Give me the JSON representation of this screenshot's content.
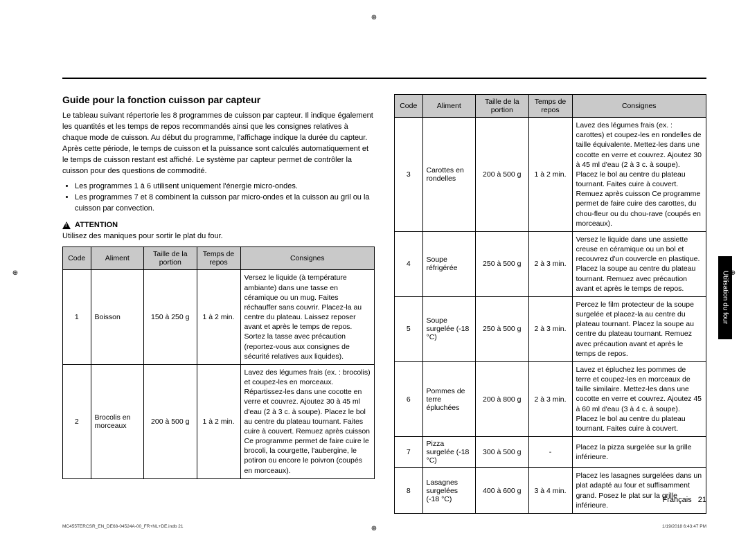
{
  "section_title": "Guide pour la fonction cuisson par capteur",
  "intro": "Le tableau suivant répertorie les 8 programmes de cuisson par capteur. Il indique également les quantités et les temps de repos recommandés ainsi que les consignes relatives à chaque mode de cuisson. Au début du programme, l'affichage indique la durée du capteur. Après cette période, le temps de cuisson et la puissance sont calculés automatiquement et le temps de cuisson restant est affiché. Le système par capteur permet de contrôler la cuisson pour des questions de commodité.",
  "bullets": [
    "Les programmes 1 à 6 utilisent uniquement l'énergie micro-ondes.",
    "Les programmes 7 et 8 combinent la cuisson par micro-ondes et la cuisson au gril ou la cuisson par convection."
  ],
  "attention_label": "ATTENTION",
  "attention_text": "Utilisez des maniques pour sortir le plat du four.",
  "headers": {
    "code": "Code",
    "aliment": "Aliment",
    "taille": "Taille de la portion",
    "temps": "Temps de repos",
    "consignes": "Consignes"
  },
  "left_rows": [
    {
      "code": "1",
      "aliment": "Boisson",
      "taille": "150 à 250 g",
      "temps": "1 à 2 min.",
      "consignes": "Versez le liquide (à température ambiante) dans une tasse en céramique ou un mug. Faites réchauffer sans couvrir. Placez-la au centre du plateau. Laissez reposer avant et après le temps de repos. Sortez la tasse avec précaution (reportez-vous aux consignes de sécurité relatives aux liquides)."
    },
    {
      "code": "2",
      "aliment": "Brocolis en morceaux",
      "taille": "200 à 500 g",
      "temps": "1 à 2 min.",
      "consignes": "Lavez des légumes frais (ex. : brocolis) et coupez-les en morceaux. Répartissez-les dans une cocotte en verre et couvrez. Ajoutez 30 à 45 ml d'eau (2 à 3 c. à soupe). Placez le bol au centre du plateau tournant. Faites cuire à couvert. Remuez après cuisson Ce programme permet de faire cuire le brocoli, la courgette, l'aubergine, le potiron ou encore le poivron (coupés en morceaux)."
    }
  ],
  "right_rows": [
    {
      "code": "3",
      "aliment": "Carottes en rondelles",
      "taille": "200 à 500 g",
      "temps": "1 à 2 min.",
      "consignes": "Lavez des légumes frais (ex. : carottes) et coupez-les en rondelles de taille équivalente. Mettez-les dans une cocotte en verre et couvrez. Ajoutez 30 à 45 ml d'eau (2 à 3 c. à soupe). Placez le bol au centre du plateau tournant. Faites cuire à couvert. Remuez après cuisson Ce programme permet de faire cuire des carottes, du chou-fleur ou du chou-rave (coupés en morceaux)."
    },
    {
      "code": "4",
      "aliment": "Soupe réfrigérée",
      "taille": "250 à 500 g",
      "temps": "2 à 3 min.",
      "consignes": "Versez le liquide dans une assiette creuse en céramique ou un bol et recouvrez d'un couvercle en plastique. Placez la soupe au centre du plateau tournant. Remuez avec précaution avant et après le temps de repos."
    },
    {
      "code": "5",
      "aliment": "Soupe surgelée (-18 °C)",
      "taille": "250 à 500 g",
      "temps": "2 à 3 min.",
      "consignes": "Percez le film protecteur de la soupe surgelée et placez-la au centre du plateau tournant. Placez la soupe au centre du plateau tournant. Remuez avec précaution avant et après le temps de repos."
    },
    {
      "code": "6",
      "aliment": "Pommes de terre épluchées",
      "taille": "200 à 800 g",
      "temps": "2 à 3 min.",
      "consignes": "Lavez et épluchez les pommes de terre et coupez-les en morceaux de taille similaire. Mettez-les dans une cocotte en verre et couvrez. Ajoutez 45 à 60 ml d'eau (3 à 4 c. à soupe). Placez le bol au centre du plateau tournant. Faites cuire à couvert."
    },
    {
      "code": "7",
      "aliment": "Pizza surgelée (-18 °C)",
      "taille": "300 à 500 g",
      "temps": "-",
      "consignes": "Placez la pizza surgelée sur la grille inférieure."
    },
    {
      "code": "8",
      "aliment": "Lasagnes surgelées (-18 °C)",
      "taille": "400 à 600 g",
      "temps": "3 à 4 min.",
      "consignes": "Placez les lasagnes surgelées dans un plat adapté au four et suffisamment grand. Posez le plat sur la grille inférieure."
    }
  ],
  "side_tab": "Utilisation du four",
  "footer_lang": "Français",
  "footer_page": "21",
  "tiny_left": "MC455TERCSR_EN_DE68-04524A-00_FR+NL+DE.indb   21",
  "tiny_right": "1/19/2018   6:43:47 PM",
  "col_widths": {
    "code": "9%",
    "aliment": "17%",
    "taille": "17%",
    "temps": "14%",
    "consignes": "43%"
  }
}
